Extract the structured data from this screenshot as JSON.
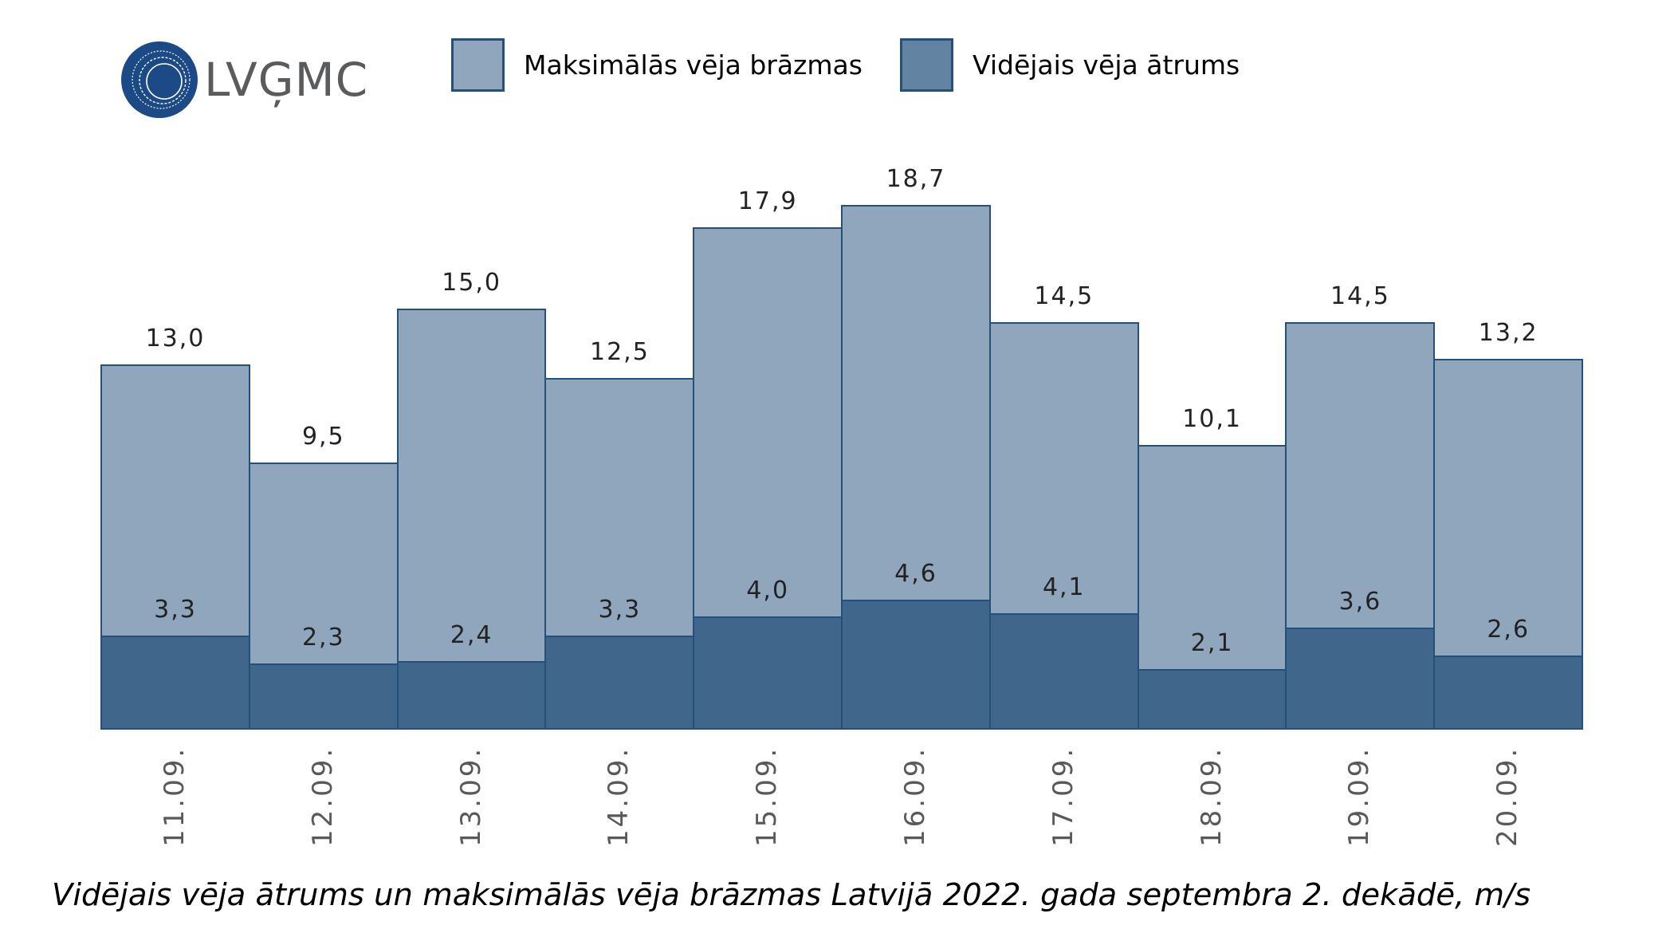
{
  "logo": {
    "text": "LVĢMC",
    "circle_color": "#1b4a86",
    "text_color": "#5a5b5d"
  },
  "legend": [
    {
      "label": "Maksimālās vēja brāzmas",
      "color": "#90a6bd"
    },
    {
      "label": "Vidējais vēja ātrums",
      "color": "#6383a3"
    }
  ],
  "title": "Vidējais vēja ātrums un maksimālās vēja brāzmas Latvijā 2022. gada septembra 2. dekādē, m/s",
  "colors": {
    "max_bar": "#90a6bd",
    "avg_bar": "#41668b",
    "border": "#24507a"
  },
  "chart_data": {
    "type": "bar",
    "title": "Vidējais vēja ātrums un maksimālās vēja brāzmas Latvijā 2022. gada septembra 2. dekādē, m/s",
    "xlabel": "",
    "ylabel": "m/s",
    "categories": [
      "11.09.",
      "12.09.",
      "13.09.",
      "14.09.",
      "15.09.",
      "16.09.",
      "17.09.",
      "18.09.",
      "19.09.",
      "20.09."
    ],
    "series": [
      {
        "name": "Maksimālās vēja brāzmas",
        "values": [
          13.0,
          9.5,
          15.0,
          12.5,
          17.9,
          18.7,
          14.5,
          10.1,
          14.5,
          13.2
        ],
        "labels": [
          "13,0",
          "9,5",
          "15,0",
          "12,5",
          "17,9",
          "18,7",
          "14,5",
          "10,1",
          "14,5",
          "13,2"
        ]
      },
      {
        "name": "Vidējais vēja ātrums",
        "values": [
          3.3,
          2.3,
          2.4,
          3.3,
          4.0,
          4.6,
          4.1,
          2.1,
          3.6,
          2.6
        ],
        "labels": [
          "3,3",
          "2,3",
          "2,4",
          "3,3",
          "4,0",
          "4,6",
          "4,1",
          "2,1",
          "3,6",
          "2,6"
        ]
      }
    ],
    "overlapping": true,
    "ylim": [
      0,
      19
    ],
    "grid": false,
    "y_axis_visible": false,
    "legend_position": "top"
  }
}
